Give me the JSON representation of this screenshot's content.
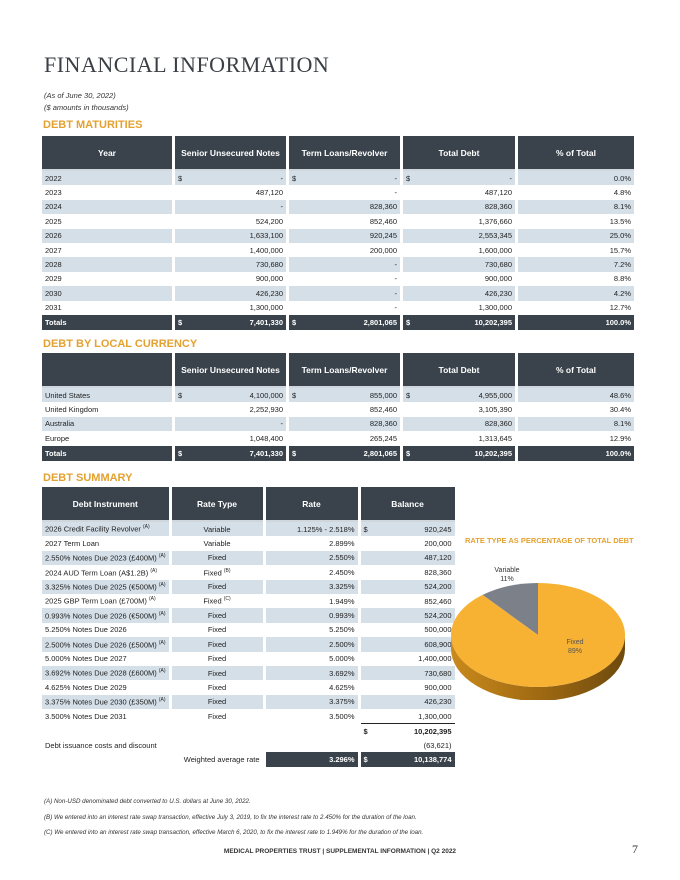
{
  "title": "FINANCIAL INFORMATION",
  "as_of": "(As of June 30, 2022)",
  "units": "($ amounts in thousands)",
  "maturities": {
    "title": "DEBT MATURITIES",
    "headers": [
      "Year",
      "Senior Unsecured Notes",
      "Term Loans/Revolver",
      "Total Debt",
      "% of Total"
    ],
    "rows": [
      [
        "2022",
        "-",
        "-",
        "-",
        "0.0%"
      ],
      [
        "2023",
        "487,120",
        "-",
        "487,120",
        "4.8%"
      ],
      [
        "2024",
        "-",
        "828,360",
        "828,360",
        "8.1%"
      ],
      [
        "2025",
        "524,200",
        "852,460",
        "1,376,660",
        "13.5%"
      ],
      [
        "2026",
        "1,633,100",
        "920,245",
        "2,553,345",
        "25.0%"
      ],
      [
        "2027",
        "1,400,000",
        "200,000",
        "1,600,000",
        "15.7%"
      ],
      [
        "2028",
        "730,680",
        "-",
        "730,680",
        "7.2%"
      ],
      [
        "2029",
        "900,000",
        "-",
        "900,000",
        "8.8%"
      ],
      [
        "2030",
        "426,230",
        "-",
        "426,230",
        "4.2%"
      ],
      [
        "2031",
        "1,300,000",
        "-",
        "1,300,000",
        "12.7%"
      ]
    ],
    "totals": [
      "Totals",
      "7,401,330",
      "2,801,065",
      "10,202,395",
      "100.0%"
    ]
  },
  "currency": {
    "title": "DEBT BY LOCAL CURRENCY",
    "headers": [
      "",
      "Senior Unsecured Notes",
      "Term Loans/Revolver",
      "Total Debt",
      "% of Total"
    ],
    "rows": [
      [
        "United States",
        "4,100,000",
        "855,000",
        "4,955,000",
        "48.6%"
      ],
      [
        "United Kingdom",
        "2,252,930",
        "852,460",
        "3,105,390",
        "30.4%"
      ],
      [
        "Australia",
        "-",
        "828,360",
        "828,360",
        "8.1%"
      ],
      [
        "Europe",
        "1,048,400",
        "265,245",
        "1,313,645",
        "12.9%"
      ]
    ],
    "totals": [
      "Totals",
      "7,401,330",
      "2,801,065",
      "10,202,395",
      "100.0%"
    ]
  },
  "summary": {
    "title": "DEBT SUMMARY",
    "headers": [
      "Debt Instrument",
      "Rate Type",
      "Rate",
      "Balance"
    ],
    "rows": [
      {
        "name": "2026 Credit Facility Revolver",
        "note": "(A)",
        "type": "Variable",
        "type_note": "",
        "rate": "1.125% - 2.518%",
        "balance": "920,245"
      },
      {
        "name": "2027 Term Loan",
        "note": "",
        "type": "Variable",
        "type_note": "",
        "rate": "2.899%",
        "balance": "200,000"
      },
      {
        "name": "2.550% Notes Due 2023 (£400M)",
        "note": "(A)",
        "type": "Fixed",
        "type_note": "",
        "rate": "2.550%",
        "balance": "487,120"
      },
      {
        "name": "2024 AUD Term Loan (A$1.2B)",
        "note": "(A)",
        "type": "Fixed",
        "type_note": "(B)",
        "rate": "2.450%",
        "balance": "828,360"
      },
      {
        "name": "3.325% Notes Due 2025 (€500M)",
        "note": "(A)",
        "type": "Fixed",
        "type_note": "",
        "rate": "3.325%",
        "balance": "524,200"
      },
      {
        "name": "2025 GBP Term Loan (£700M)",
        "note": "(A)",
        "type": "Fixed",
        "type_note": "(C)",
        "rate": "1.949%",
        "balance": "852,460"
      },
      {
        "name": "0.993% Notes Due 2026 (€500M)",
        "note": "(A)",
        "type": "Fixed",
        "type_note": "",
        "rate": "0.993%",
        "balance": "524,200"
      },
      {
        "name": "5.250% Notes Due 2026",
        "note": "",
        "type": "Fixed",
        "type_note": "",
        "rate": "5.250%",
        "balance": "500,000"
      },
      {
        "name": "2.500% Notes Due 2026 (£500M)",
        "note": "(A)",
        "type": "Fixed",
        "type_note": "",
        "rate": "2.500%",
        "balance": "608,900"
      },
      {
        "name": "5.000% Notes Due 2027",
        "note": "",
        "type": "Fixed",
        "type_note": "",
        "rate": "5.000%",
        "balance": "1,400,000"
      },
      {
        "name": "3.692% Notes Due 2028 (£600M)",
        "note": "(A)",
        "type": "Fixed",
        "type_note": "",
        "rate": "3.692%",
        "balance": "730,680"
      },
      {
        "name": "4.625% Notes Due 2029",
        "note": "",
        "type": "Fixed",
        "type_note": "",
        "rate": "4.625%",
        "balance": "900,000"
      },
      {
        "name": "3.375% Notes Due 2030 (£350M)",
        "note": "(A)",
        "type": "Fixed",
        "type_note": "",
        "rate": "3.375%",
        "balance": "426,230"
      },
      {
        "name": "3.500% Notes Due 2031",
        "note": "",
        "type": "Fixed",
        "type_note": "",
        "rate": "3.500%",
        "balance": "1,300,000"
      }
    ],
    "total": "10,202,395",
    "issuance_label": "Debt issuance costs and discount",
    "issuance_value": "(63,621)",
    "weighted_label": "Weighted average rate",
    "weighted_rate": "3.296%",
    "net_total": "10,138,774",
    "currency_symbol": "$"
  },
  "chart_data": {
    "type": "pie",
    "title": "RATE TYPE AS PERCENTAGE OF TOTAL DEBT",
    "slices": [
      {
        "label": "Variable",
        "value": 11,
        "display": "11%",
        "color": "#7c8089"
      },
      {
        "label": "Fixed",
        "value": 89,
        "display": "89%",
        "color": "#f7b234"
      }
    ]
  },
  "footnotes": [
    "(A) Non-USD denominated debt converted to U.S. dollars at June 30, 2022.",
    "(B) We entered into an interest rate swap transaction, effective July 3, 2019, to fix the interest rate to 2.450% for the duration of the loan.",
    "(C) We entered into an interest rate swap transaction, effective March 6, 2020, to fix the interest rate to 1.949% for the duration of the loan."
  ],
  "footer": "MEDICAL PROPERTIES TRUST | SUPPLEMENTAL INFORMATION | Q2 2022",
  "page_number": "7",
  "colors": {
    "header": "#3a434c",
    "band": "#d4dfe8",
    "accent": "#e3a12f"
  }
}
